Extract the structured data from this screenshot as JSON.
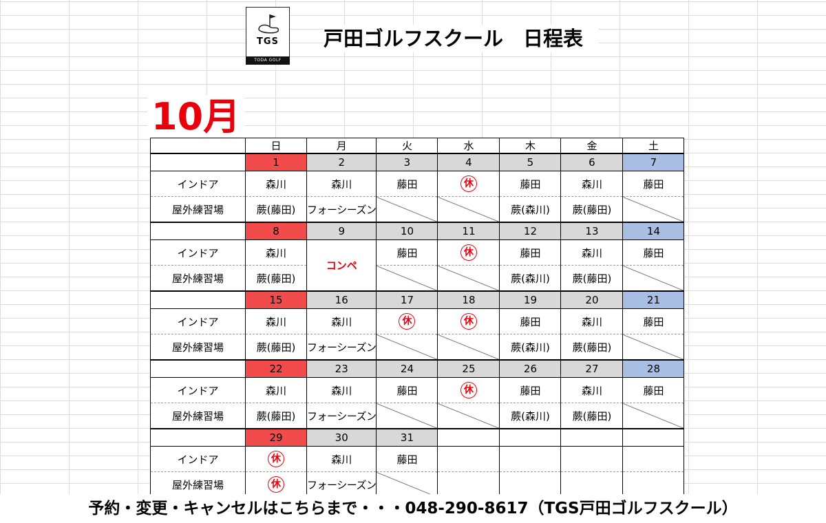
{
  "logo": {
    "name": "TGS",
    "subtitle": "TODA GOLF SCHOOL"
  },
  "title": "戸田ゴルフスクール　日程表",
  "month": "10月",
  "labels": {
    "indoor": "インドア",
    "outdoor": "屋外練習場"
  },
  "days_of_week": [
    "日",
    "月",
    "火",
    "水",
    "木",
    "金",
    "土"
  ],
  "weeks": [
    {
      "dates": [
        "1",
        "2",
        "3",
        "4",
        "5",
        "6",
        "7"
      ],
      "indoor": [
        "森川",
        "森川",
        "藤田",
        "休",
        "藤田",
        "森川",
        "藤田"
      ],
      "outdoor": [
        "蕨(藤田)",
        "フォーシーズン",
        "",
        "",
        "蕨(森川)",
        "蕨(藤田)",
        ""
      ]
    },
    {
      "dates": [
        "8",
        "9",
        "10",
        "11",
        "12",
        "13",
        "14"
      ],
      "indoor": [
        "森川",
        "",
        "藤田",
        "休",
        "藤田",
        "森川",
        "藤田"
      ],
      "outdoor": [
        "蕨(藤田)",
        "",
        "",
        "",
        "蕨(森川)",
        "蕨(藤田)",
        ""
      ],
      "event": "コンペ"
    },
    {
      "dates": [
        "15",
        "16",
        "17",
        "18",
        "19",
        "20",
        "21"
      ],
      "indoor": [
        "森川",
        "森川",
        "休",
        "休",
        "藤田",
        "森川",
        "藤田"
      ],
      "outdoor": [
        "蕨(藤田)",
        "フォーシーズン",
        "",
        "",
        "蕨(森川)",
        "蕨(藤田)",
        ""
      ]
    },
    {
      "dates": [
        "22",
        "23",
        "24",
        "25",
        "26",
        "27",
        "28"
      ],
      "indoor": [
        "森川",
        "森川",
        "藤田",
        "休",
        "藤田",
        "森川",
        "藤田"
      ],
      "outdoor": [
        "蕨(藤田)",
        "フォーシーズン",
        "",
        "",
        "蕨(森川)",
        "蕨(藤田)",
        ""
      ]
    },
    {
      "dates": [
        "29",
        "30",
        "31",
        "",
        "",
        "",
        ""
      ],
      "indoor": [
        "休",
        "森川",
        "藤田",
        "",
        "",
        "",
        ""
      ],
      "outdoor": [
        "休",
        "フォーシーズン",
        "",
        "",
        "",
        "",
        ""
      ]
    }
  ],
  "colors": {
    "sunday": "#f14b4b",
    "saturday": "#a9bee3",
    "weekday": "#d8d8d8",
    "accent_red": "#e8000b"
  },
  "footer": "予約・変更・キャンセルはこちらまで・・・048-290-8617（TGS戸田ゴルフスクール）"
}
